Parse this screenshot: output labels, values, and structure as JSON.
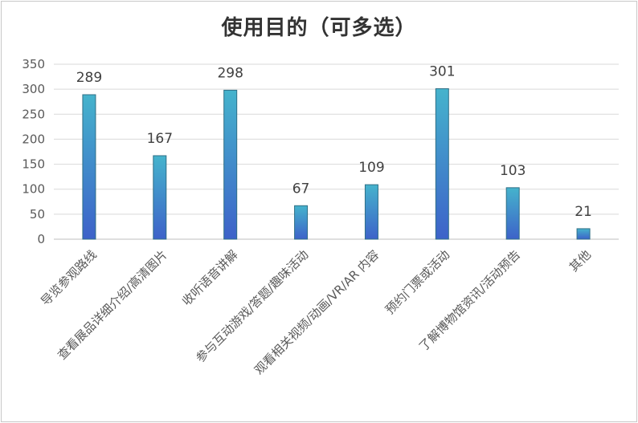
{
  "chart_data": {
    "type": "bar",
    "title": "使用目的（可多选）",
    "categories": [
      "导览参观路线",
      "查看展品详细介绍/高清图片",
      "收听语音讲解",
      "参与互动游戏/答题/趣味活动",
      "观看相关视频/动画/VR/AR 内容",
      "预约门票或活动",
      "了解博物馆资讯/活动预告",
      "其他"
    ],
    "values": [
      289,
      167,
      298,
      67,
      109,
      301,
      103,
      21
    ],
    "ylim": [
      0,
      350
    ],
    "yticks": [
      0,
      50,
      100,
      150,
      200,
      250,
      300,
      350
    ],
    "grid": true,
    "legend": "none",
    "colors": {
      "bar_top": "#45b3cc",
      "bar_bottom": "#3d62c9",
      "bar_edge": "#2f6f86",
      "grid": "#d9d9d9",
      "axis": "#bfbfbf"
    }
  }
}
